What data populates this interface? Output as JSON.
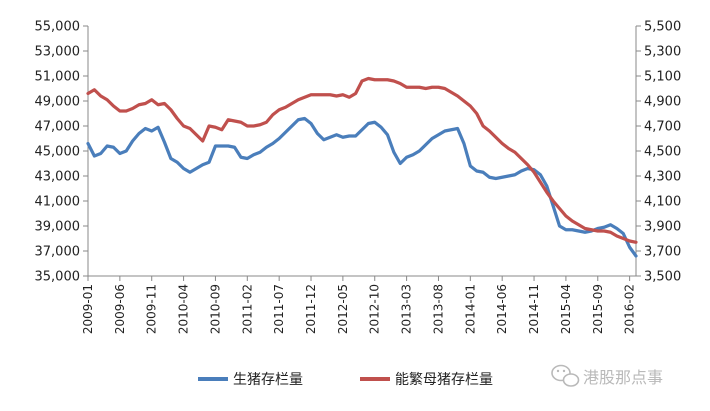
{
  "chart_data": {
    "type": "line",
    "title": "",
    "xlabel": "",
    "ylabel": "",
    "y_left": {
      "range": [
        35000,
        55000
      ],
      "ticks": [
        "35,000",
        "37,000",
        "39,000",
        "41,000",
        "43,000",
        "45,000",
        "47,000",
        "49,000",
        "51,000",
        "53,000",
        "55,000"
      ]
    },
    "y_right": {
      "range": [
        3500,
        5500
      ],
      "ticks": [
        "3,500",
        "3,700",
        "3,900",
        "4,100",
        "4,300",
        "4,500",
        "4,700",
        "4,900",
        "5,100",
        "5,300",
        "5,500"
      ]
    },
    "x_tick_labels": [
      "2009-01",
      "2009-06",
      "2009-11",
      "2010-04",
      "2010-09",
      "2011-02",
      "2011-07",
      "2011-12",
      "2012-05",
      "2012-10",
      "2013-03",
      "2013-08",
      "2014-01",
      "2014-06",
      "2014-11",
      "2015-04",
      "2015-09",
      "2016-02"
    ],
    "x_start": "2009-01",
    "legend_position": "bottom",
    "grid": false,
    "series": [
      {
        "name": "生猪存栏量",
        "axis": "left",
        "color": "#4a7ebb",
        "values": [
          45600,
          44600,
          44800,
          45400,
          45300,
          44800,
          45000,
          45800,
          46400,
          46800,
          46600,
          46900,
          45700,
          44400,
          44100,
          43600,
          43300,
          43600,
          43900,
          44100,
          45400,
          45400,
          45400,
          45300,
          44500,
          44400,
          44700,
          44900,
          45300,
          45600,
          46000,
          46500,
          47000,
          47500,
          47600,
          47200,
          46400,
          45900,
          46100,
          46300,
          46100,
          46200,
          46200,
          46700,
          47200,
          47300,
          46900,
          46300,
          44900,
          44000,
          44500,
          44700,
          45000,
          45500,
          46000,
          46300,
          46600,
          46700,
          46800,
          45600,
          43800,
          43400,
          43300,
          42900,
          42800,
          42900,
          43000,
          43100,
          43400,
          43600,
          43500,
          43100,
          42200,
          40600,
          39000,
          38700,
          38700,
          38600,
          38500,
          38600,
          38800,
          38900,
          39100,
          38800,
          38400,
          37300,
          36600
        ]
      },
      {
        "name": "能繁母猪存栏量",
        "axis": "right",
        "color": "#c0504d",
        "values": [
          4960,
          4990,
          4940,
          4910,
          4860,
          4820,
          4820,
          4840,
          4870,
          4880,
          4910,
          4870,
          4880,
          4830,
          4760,
          4700,
          4680,
          4630,
          4580,
          4700,
          4690,
          4670,
          4750,
          4740,
          4730,
          4700,
          4700,
          4710,
          4730,
          4790,
          4830,
          4850,
          4880,
          4910,
          4930,
          4950,
          4950,
          4950,
          4950,
          4940,
          4950,
          4930,
          4960,
          5060,
          5080,
          5070,
          5070,
          5070,
          5060,
          5040,
          5010,
          5010,
          5010,
          5000,
          5010,
          5010,
          5000,
          4970,
          4940,
          4900,
          4860,
          4800,
          4700,
          4660,
          4610,
          4560,
          4520,
          4490,
          4440,
          4390,
          4330,
          4250,
          4170,
          4100,
          4040,
          3980,
          3940,
          3910,
          3880,
          3870,
          3860,
          3860,
          3850,
          3820,
          3800,
          3780,
          3770
        ]
      }
    ]
  },
  "watermark": {
    "text": "港股那点事",
    "icon": "wechat-icon"
  }
}
